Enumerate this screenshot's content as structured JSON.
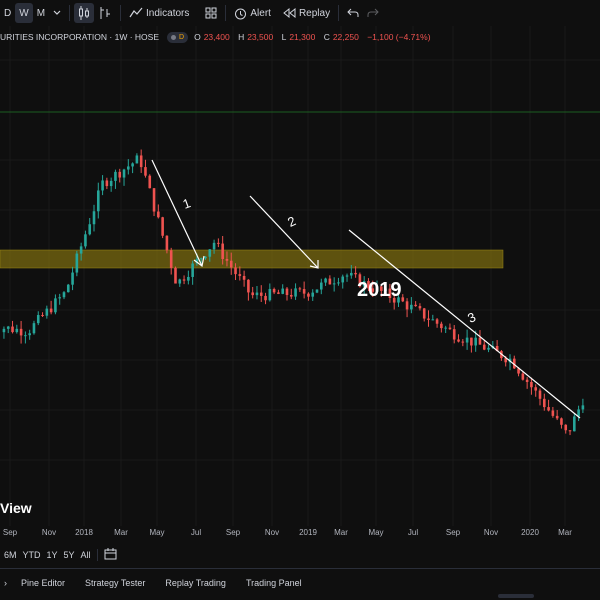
{
  "toolbar": {
    "interval_day": "D",
    "interval_week": "W",
    "interval_month": "M",
    "indicators_label": "Indicators",
    "alert_label": "Alert",
    "replay_label": "Replay"
  },
  "legend": {
    "symbol": "URITIES INCORPORATION · 1W · HOSE",
    "badge": "D",
    "open_key": "O",
    "open": "23,400",
    "high_key": "H",
    "high": "23,500",
    "low_key": "L",
    "low": "21,300",
    "close_key": "C",
    "close": "22,250",
    "change": "−1,100 (−4.71%)"
  },
  "annotations": {
    "year": "2019",
    "wave1": "1",
    "wave2": "2",
    "wave3": "3"
  },
  "watermark": "View",
  "time_axis": [
    "Sep",
    "Nov",
    "2018",
    "Mar",
    "May",
    "Jul",
    "Sep",
    "Nov",
    "2019",
    "Mar",
    "May",
    "Jul",
    "Sep",
    "Nov",
    "2020",
    "Mar"
  ],
  "ranges": [
    "6M",
    "YTD",
    "1Y",
    "5Y",
    "All"
  ],
  "bottom_tabs": [
    "Pine Editor",
    "Strategy Tester",
    "Replay Trading",
    "Trading Panel"
  ],
  "colors": {
    "background": "#0f0f0f",
    "up": "#26a69a",
    "down": "#ef5350",
    "support_zone": "#7a6a10",
    "green_line": "#1b5e20",
    "drawing": "#ffffff"
  },
  "icons": [
    "candles-icon",
    "bar-style-icon",
    "indicators-icon",
    "templates-icon",
    "alert-icon",
    "replay-icon",
    "undo-icon",
    "redo-icon",
    "compare-date-icon"
  ],
  "chart_data": {
    "type": "candlestick",
    "interval": "1W",
    "exchange": "HOSE",
    "price_path": [
      {
        "date": "2017-08",
        "price": 18500
      },
      {
        "date": "2017-10",
        "price": 18200
      },
      {
        "date": "2017-12",
        "price": 20500
      },
      {
        "date": "2018-02",
        "price": 27000
      },
      {
        "date": "2018-04",
        "price": 28500
      },
      {
        "date": "2018-06",
        "price": 21000
      },
      {
        "date": "2018-08",
        "price": 23500
      },
      {
        "date": "2018-10",
        "price": 20300
      },
      {
        "date": "2019-01",
        "price": 20500
      },
      {
        "date": "2019-03",
        "price": 21600
      },
      {
        "date": "2019-06",
        "price": 20000
      },
      {
        "date": "2019-09",
        "price": 18000
      },
      {
        "date": "2019-12",
        "price": 16500
      },
      {
        "date": "2020-03",
        "price": 12000
      },
      {
        "date": "2020-04",
        "price": 14500
      }
    ],
    "support_zone": {
      "from": 19900,
      "to": 20700
    },
    "wave_labels": [
      "1",
      "2",
      "3"
    ]
  }
}
